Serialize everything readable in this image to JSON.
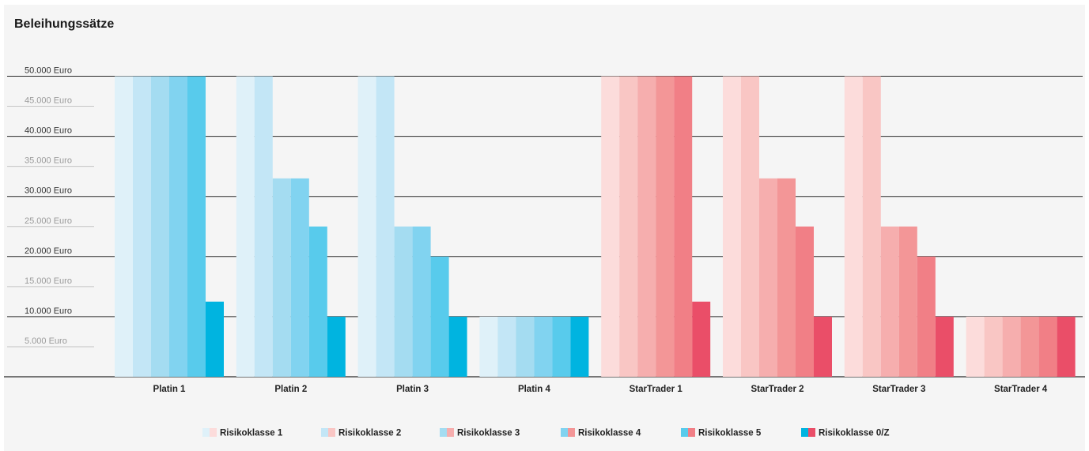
{
  "chart_data": {
    "type": "bar",
    "title": "Beleihungssätze",
    "xlabel": "",
    "ylabel": "",
    "ylim": [
      0,
      50000
    ],
    "grid": true,
    "legend_position": "bottom",
    "y_ticks": [
      {
        "value": 50000,
        "label": "50.000 Euro",
        "major": true
      },
      {
        "value": 45000,
        "label": "45.000 Euro",
        "major": false
      },
      {
        "value": 40000,
        "label": "40.000 Euro",
        "major": true
      },
      {
        "value": 35000,
        "label": "35.000 Euro",
        "major": false
      },
      {
        "value": 30000,
        "label": "30.000 Euro",
        "major": true
      },
      {
        "value": 25000,
        "label": "25.000 Euro",
        "major": false
      },
      {
        "value": 20000,
        "label": "20.000 Euro",
        "major": true
      },
      {
        "value": 15000,
        "label": "15.000 Euro",
        "major": false
      },
      {
        "value": 10000,
        "label": "10.000 Euro",
        "major": true
      },
      {
        "value": 5000,
        "label": "5.000 Euro",
        "major": false
      }
    ],
    "categories": [
      "Platin 1",
      "Platin 2",
      "Platin 3",
      "Platin 4",
      "StarTrader 1",
      "StarTrader 2",
      "StarTrader 3",
      "StarTrader 4"
    ],
    "category_palette": [
      "blue",
      "blue",
      "blue",
      "blue",
      "red",
      "red",
      "red",
      "red"
    ],
    "palettes": {
      "blue": [
        "#dff1f9",
        "#c3e6f6",
        "#a4dcf1",
        "#81d3f0",
        "#58cbec",
        "#00b4e0"
      ],
      "red": [
        "#fcdcdb",
        "#f9c6c4",
        "#f6aeae",
        "#f39697",
        "#f17f86",
        "#ea4e68"
      ]
    },
    "series": [
      {
        "name": "Risikoklasse 1",
        "values": [
          50000,
          50000,
          50000,
          10000,
          50000,
          50000,
          50000,
          10000
        ]
      },
      {
        "name": "Risikoklasse 2",
        "values": [
          50000,
          50000,
          50000,
          10000,
          50000,
          50000,
          50000,
          10000
        ]
      },
      {
        "name": "Risikoklasse 3",
        "values": [
          50000,
          33000,
          25000,
          10000,
          50000,
          33000,
          25000,
          10000
        ]
      },
      {
        "name": "Risikoklasse 4",
        "values": [
          50000,
          33000,
          25000,
          10000,
          50000,
          33000,
          25000,
          10000
        ]
      },
      {
        "name": "Risikoklasse 5",
        "values": [
          50000,
          25000,
          20000,
          10000,
          50000,
          25000,
          20000,
          10000
        ]
      },
      {
        "name": "Risikoklasse 0/Z",
        "values": [
          12500,
          10000,
          10000,
          10000,
          12500,
          10000,
          10000,
          10000
        ]
      }
    ]
  }
}
